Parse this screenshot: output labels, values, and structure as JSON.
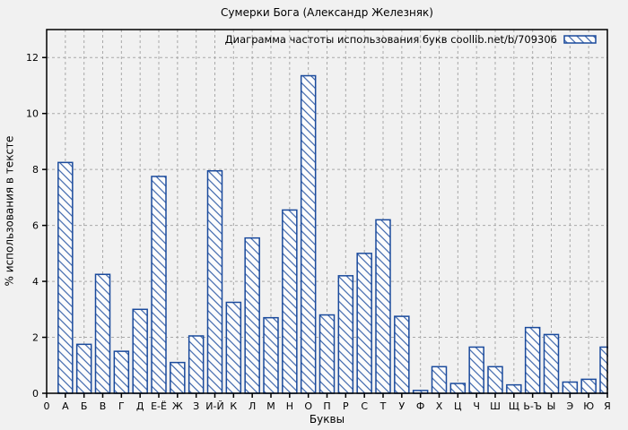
{
  "chart_data": {
    "type": "bar",
    "title": "Сумерки Бога (Александр Железняк)",
    "legend": {
      "label": "Диаграмма частоты использования букв coollib.net/b/709306",
      "position": "top-right-inside"
    },
    "xlabel": "Буквы",
    "ylabel": "% использования в тексте",
    "x_origin_label": "0",
    "categories": [
      "А",
      "Б",
      "В",
      "Г",
      "Д",
      "Е-Ё",
      "Ж",
      "З",
      "И-Й",
      "К",
      "Л",
      "М",
      "Н",
      "О",
      "П",
      "Р",
      "С",
      "Т",
      "У",
      "Ф",
      "Х",
      "Ц",
      "Ч",
      "Ш",
      "Щ",
      "Ь-Ъ",
      "Ы",
      "Э",
      "Ю",
      "Я"
    ],
    "values": [
      8.25,
      1.75,
      4.25,
      1.5,
      3.0,
      7.75,
      1.1,
      2.05,
      7.95,
      3.25,
      5.55,
      2.7,
      6.55,
      11.35,
      2.8,
      4.2,
      5.0,
      6.2,
      2.75,
      0.1,
      0.95,
      0.35,
      1.65,
      0.95,
      0.3,
      2.35,
      2.1,
      0.4,
      0.5,
      1.65
    ],
    "yticks": [
      0,
      2,
      4,
      6,
      8,
      10,
      12
    ],
    "ylim": [
      0,
      13
    ],
    "grid": true,
    "bar_style": "diagonal-hatch",
    "colors": {
      "bar": "#1a4a9c",
      "bar_fill": "#fcfcfc",
      "background": "#f1f1f1",
      "grid": "#a9a9a9",
      "axis": "#000000"
    }
  }
}
